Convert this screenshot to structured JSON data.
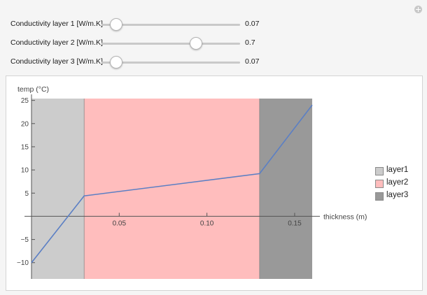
{
  "sliders": [
    {
      "label": "Conductivity layer 1 [W/m.K]",
      "value": "0.07",
      "fraction": 0.1
    },
    {
      "label": "Conductivity layer 2 [W/m.K]",
      "value": "0.7",
      "fraction": 0.675
    },
    {
      "label": "Conductivity layer 3 [W/m.K]",
      "value": "0.07",
      "fraction": 0.1
    }
  ],
  "colors": {
    "layer1": "#cccccc",
    "layer2": "#ffbdbd",
    "layer3": "#999999",
    "line": "#5b7fc4"
  },
  "chart_data": {
    "type": "line",
    "xlabel": "thickness (m)",
    "ylabel": "temp (°C)",
    "xlim": [
      0,
      0.16
    ],
    "ylim": [
      -12,
      26
    ],
    "x_ticks": [
      0.05,
      0.1,
      0.15
    ],
    "x_tick_labels": [
      "0.05",
      "0.10",
      "0.15"
    ],
    "y_ticks": [
      -10,
      -5,
      5,
      10,
      15,
      20,
      25
    ],
    "y_tick_labels": [
      "−10",
      "−5",
      "5",
      "10",
      "15",
      "20",
      "25"
    ],
    "regions": [
      {
        "name": "layer1",
        "x": [
          0,
          0.03
        ]
      },
      {
        "name": "layer2",
        "x": [
          0.03,
          0.13
        ]
      },
      {
        "name": "layer3",
        "x": [
          0.13,
          0.16
        ]
      }
    ],
    "series": [
      {
        "x": [
          0,
          0.03,
          0.13,
          0.16
        ],
        "y": [
          -10,
          4.4,
          9.2,
          24
        ]
      }
    ],
    "legend": [
      "layer1",
      "layer2",
      "layer3"
    ],
    "legend_position": "right"
  }
}
